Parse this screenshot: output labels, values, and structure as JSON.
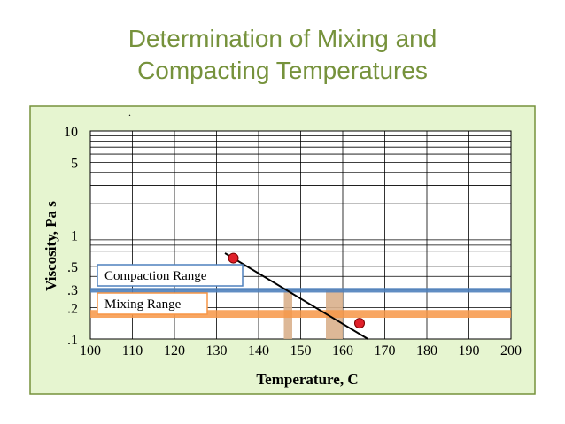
{
  "slide": {
    "title_line1": "Determination of Mixing and",
    "title_line2": "Compacting Temperatures",
    "dot_mark": "."
  },
  "colors": {
    "panel_fill": "#e6f5d0",
    "panel_border": "#76923c",
    "compaction_band": "#4f81bd",
    "mixing_band": "#f79646",
    "range_column": "#d9b08c",
    "line": "#000000",
    "marker": "#e0202a"
  },
  "chart_data": {
    "type": "line",
    "title": "",
    "xlabel": "Temperature, C",
    "ylabel": "Viscosity, Pa s",
    "xlim": [
      100,
      200
    ],
    "x_ticks": [
      100,
      110,
      120,
      130,
      140,
      150,
      160,
      170,
      180,
      190,
      200
    ],
    "y_scale": "log",
    "ylim": [
      0.1,
      10
    ],
    "y_ticks": [
      {
        "value": 10,
        "label": "10"
      },
      {
        "value": 5,
        "label": "5"
      },
      {
        "value": 1,
        "label": "1"
      },
      {
        "value": 0.5,
        "label": ".5"
      },
      {
        "value": 0.3,
        "label": ".3"
      },
      {
        "value": 0.2,
        "label": ".2"
      },
      {
        "value": 0.1,
        "label": ".1"
      }
    ],
    "grid_y": [
      10,
      9,
      8,
      7,
      6,
      5,
      4,
      3,
      2,
      1,
      0.9,
      0.8,
      0.7,
      0.6,
      0.5,
      0.4,
      0.3,
      0.2
    ],
    "grid_x": true,
    "bands": [
      {
        "label": "Compaction Range",
        "y_range": [
          0.28,
          0.31
        ]
      },
      {
        "label": "Mixing Range",
        "y_range": [
          0.16,
          0.19
        ]
      }
    ],
    "temperature_ranges": [
      {
        "label": "Compaction Range",
        "x_range": [
          146,
          148
        ]
      },
      {
        "label": "Mixing Range",
        "x_range": [
          156,
          160
        ]
      }
    ],
    "line_x": [
      132,
      166
    ],
    "line_y": [
      0.67,
      0.1
    ],
    "points": [
      {
        "x": 134,
        "y": 0.6
      },
      {
        "x": 164,
        "y": 0.142
      }
    ]
  }
}
